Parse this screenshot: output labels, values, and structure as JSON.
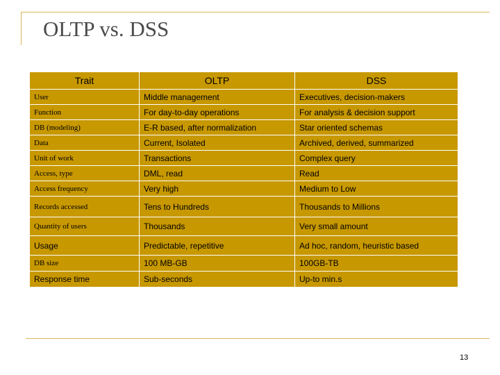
{
  "slide": {
    "title": "OLTP vs. DSS",
    "page_number": "13"
  },
  "table": {
    "headers": {
      "trait": "Trait",
      "oltp": "OLTP",
      "dss": "DSS"
    },
    "rows": [
      {
        "trait": "User",
        "oltp": "Middle management",
        "dss": "Executives, decision-makers"
      },
      {
        "trait": "Function",
        "oltp": "For day-to-day operations",
        "dss": "For analysis & decision support"
      },
      {
        "trait": "DB (modeling)",
        "oltp": "E-R based, after normalization",
        "dss": "Star oriented schemas"
      },
      {
        "trait": "Data",
        "oltp": "Current, Isolated",
        "dss": "Archived, derived, summarized"
      },
      {
        "trait": "Unit of work",
        "oltp": "Transactions",
        "dss": "Complex query"
      },
      {
        "trait": "Access, type",
        "oltp": "DML, read",
        "dss": "Read"
      },
      {
        "trait": "Access frequency",
        "oltp": "Very high",
        "dss": "Medium to Low"
      },
      {
        "trait": "Records accessed",
        "oltp": "Tens to Hundreds",
        "dss": "Thousands to Millions"
      },
      {
        "trait": "Quantity of users",
        "oltp": "Thousands",
        "dss": "Very small amount"
      },
      {
        "trait": "Usage",
        "oltp": "Predictable, repetitive",
        "dss": "Ad hoc, random, heuristic based"
      },
      {
        "trait": "DB size",
        "oltp": "100 MB-GB",
        "dss": "100GB-TB"
      },
      {
        "trait": "Response time",
        "oltp": "Sub-seconds",
        "dss": "Up-to min.s"
      }
    ]
  },
  "colors": {
    "table_fill": "#c79800",
    "accent_line": "#d9b55a",
    "title_text": "#4a4a4a"
  }
}
